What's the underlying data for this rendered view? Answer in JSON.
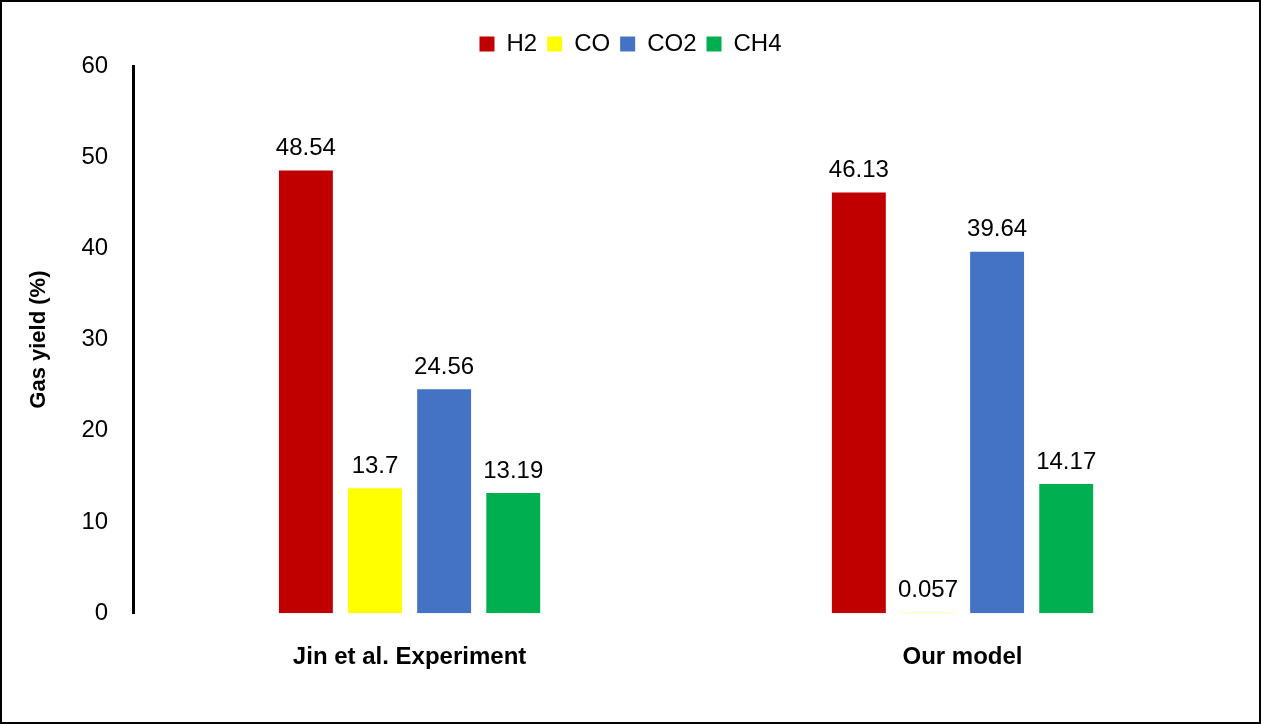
{
  "chart_data": {
    "type": "bar",
    "ylabel": "Gas yield (%)",
    "categories": [
      "Jin et al. Experiment",
      "Our model"
    ],
    "series": [
      {
        "name": "H2",
        "color": "#c00000",
        "values": [
          48.54,
          46.13
        ]
      },
      {
        "name": "CO",
        "color": "#ffff00",
        "values": [
          13.7,
          0.057
        ]
      },
      {
        "name": "CO2",
        "color": "#4472c4",
        "values": [
          24.56,
          39.64
        ]
      },
      {
        "name": "CH4",
        "color": "#00b050",
        "values": [
          13.19,
          14.17
        ]
      }
    ],
    "ylim": [
      0,
      60
    ],
    "yticks": [
      0,
      10,
      20,
      30,
      40,
      50,
      60
    ],
    "grid": false,
    "legend": "top",
    "data_labels": true
  }
}
